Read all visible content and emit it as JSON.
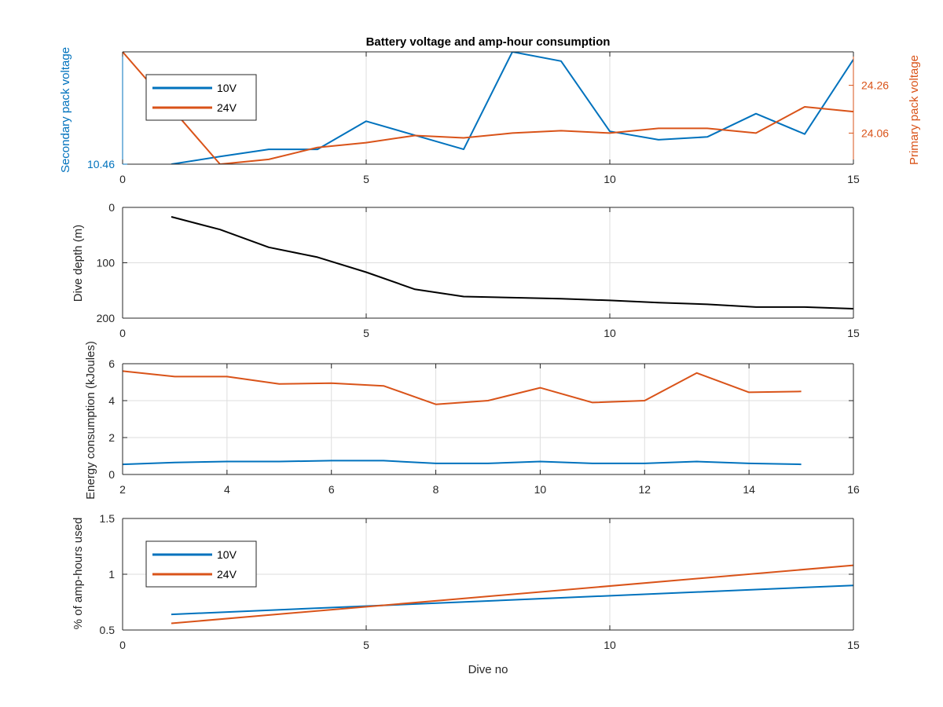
{
  "figure": {
    "title": "Battery voltage and amp-hour consumption"
  },
  "colors": {
    "blue": "#0072BD",
    "orange": "#D95319",
    "black": "#000000"
  },
  "chart_data": [
    {
      "type": "line",
      "title": "Battery voltage and amp-hour consumption",
      "xlim": [
        0,
        15
      ],
      "xticks": [
        0,
        5,
        10,
        15
      ],
      "xtick_labels": [
        "0",
        "5",
        "10",
        "15"
      ],
      "ylabel_left": "Secondary pack voltage",
      "ylabel_right": "Primary pack voltage",
      "left_axis": {
        "ylim": [
          10.46,
          10.5
        ],
        "ticks": [
          10.46
        ],
        "tick_labels": [
          "10.46"
        ]
      },
      "right_axis": {
        "ylim": [
          23.93,
          24.4
        ],
        "ticks": [
          24.06,
          24.26
        ],
        "tick_labels": [
          "24.06",
          "24.26"
        ]
      },
      "grid": true,
      "legend": {
        "position": "top-left",
        "entries": [
          "10V",
          "24V"
        ]
      },
      "series": [
        {
          "name": "10V",
          "axis": "left",
          "x": [
            1,
            2,
            3,
            4,
            5,
            6,
            7,
            8,
            9,
            10,
            11,
            12,
            13,
            14,
            15
          ],
          "y": [
            10.46,
            10.4627,
            10.4653,
            10.4653,
            10.4753,
            10.4703,
            10.4653,
            10.5,
            10.4967,
            10.4717,
            10.4687,
            10.4697,
            10.478,
            10.4707,
            10.4973
          ]
        },
        {
          "name": "24V",
          "axis": "right",
          "x": [
            0,
            2,
            3,
            4,
            5,
            6,
            7,
            8,
            9,
            10,
            11,
            12,
            13,
            14,
            15
          ],
          "y": [
            24.4,
            23.93,
            23.95,
            24.0,
            24.02,
            24.05,
            24.04,
            24.06,
            24.07,
            24.06,
            24.08,
            24.08,
            24.06,
            24.17,
            24.15
          ]
        }
      ]
    },
    {
      "type": "line",
      "xlim": [
        0,
        15
      ],
      "xticks": [
        0,
        5,
        10,
        15
      ],
      "xtick_labels": [
        "0",
        "5",
        "10",
        "15"
      ],
      "ylabel": "Dive depth (m)",
      "ylim": [
        0,
        200
      ],
      "y_reversed": true,
      "yticks": [
        0,
        100,
        200
      ],
      "ytick_labels": [
        "0",
        "100",
        "200"
      ],
      "grid": true,
      "series": [
        {
          "x": [
            1,
            2,
            3,
            4,
            5,
            6,
            7,
            8,
            9,
            10,
            11,
            12,
            13,
            14,
            15
          ],
          "y": [
            17,
            40,
            72,
            90,
            117,
            148,
            161,
            163,
            165,
            168,
            172,
            175,
            180,
            180,
            183
          ]
        }
      ]
    },
    {
      "type": "line",
      "xlim": [
        2,
        16
      ],
      "xticks": [
        2,
        4,
        6,
        8,
        10,
        12,
        14,
        16
      ],
      "xtick_labels": [
        "2",
        "4",
        "6",
        "8",
        "10",
        "12",
        "14",
        "16"
      ],
      "ylabel": "Energy consumption (kJoules)",
      "ylim": [
        0,
        6
      ],
      "yticks": [
        0,
        2,
        4,
        6
      ],
      "ytick_labels": [
        "0",
        "2",
        "4",
        "6"
      ],
      "grid": true,
      "series": [
        {
          "x": [
            2,
            3,
            4,
            5,
            6,
            7,
            8,
            9,
            10,
            11,
            12,
            13,
            14,
            15
          ],
          "y": [
            0.55,
            0.65,
            0.7,
            0.7,
            0.75,
            0.75,
            0.6,
            0.6,
            0.7,
            0.6,
            0.6,
            0.7,
            0.6,
            0.55
          ]
        },
        {
          "x": [
            2,
            3,
            4,
            5,
            6,
            7,
            8,
            9,
            10,
            11,
            12,
            13,
            14,
            15
          ],
          "y": [
            5.6,
            5.3,
            5.3,
            4.9,
            4.95,
            4.8,
            3.8,
            4.0,
            4.7,
            3.9,
            4.0,
            5.5,
            4.45,
            4.5
          ]
        }
      ]
    },
    {
      "type": "line",
      "xlim": [
        0,
        15
      ],
      "xticks": [
        0,
        5,
        10,
        15
      ],
      "xtick_labels": [
        "0",
        "5",
        "10",
        "15"
      ],
      "xlabel": "Dive no",
      "ylabel": "% of amp-hours used",
      "ylim": [
        0.5,
        1.5
      ],
      "yticks": [
        0.5,
        1,
        1.5
      ],
      "ytick_labels": [
        "0.5",
        "1",
        "1.5"
      ],
      "grid": true,
      "legend": {
        "position": "top-left",
        "entries": [
          "10V",
          "24V"
        ]
      },
      "series": [
        {
          "name": "10V",
          "x": [
            1,
            15
          ],
          "y": [
            0.64,
            0.9
          ]
        },
        {
          "name": "24V",
          "x": [
            1,
            15
          ],
          "y": [
            0.56,
            1.08
          ]
        }
      ]
    }
  ]
}
